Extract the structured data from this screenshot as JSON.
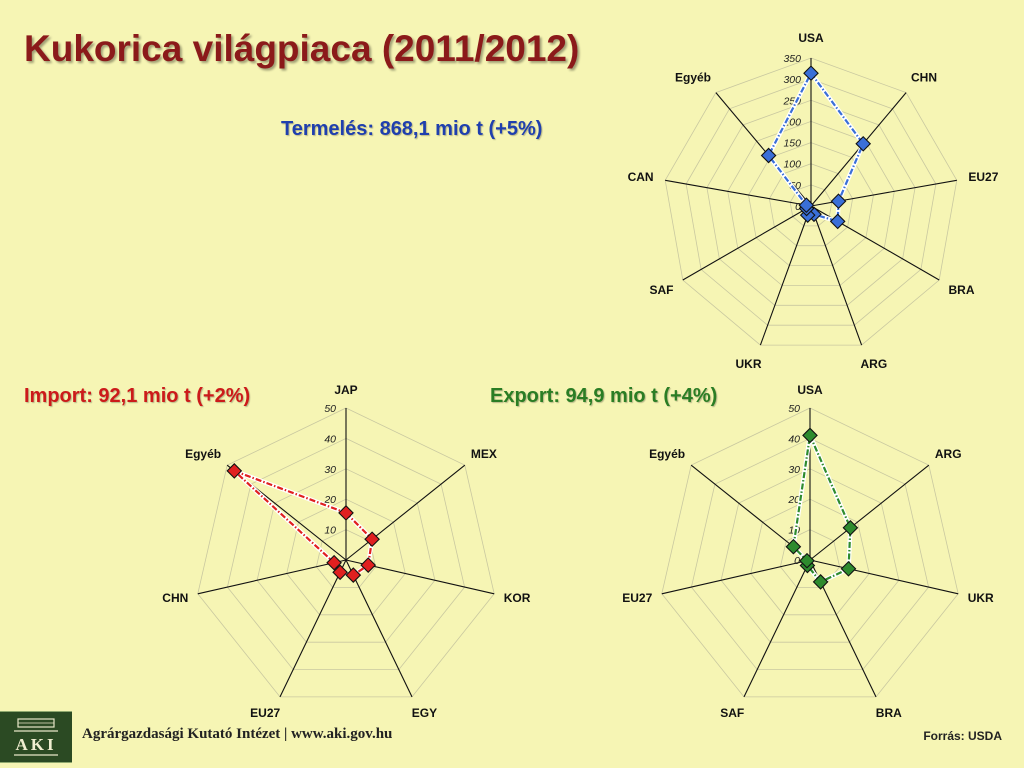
{
  "page": {
    "title": "Kukorica világpiaca (2011/2012)",
    "footer_org": "Agrárgazdasági Kutató Intézet | www.aki.gov.hu",
    "footer_source": "Forrás: USDA",
    "logo_text": "AKI"
  },
  "colors": {
    "background": "#f6f5b4",
    "title": "#8b1a1a",
    "production": "#3a6fd8",
    "import": "#e02020",
    "export": "#2e8b2e"
  },
  "chart_data": [
    {
      "id": "production",
      "type": "radar",
      "subtitle": "Termelés: 868,1 mio t (+5%)",
      "categories": [
        "USA",
        "CHN",
        "EU27",
        "BRA",
        "ARG",
        "UKR",
        "SAF",
        "CAN",
        "Egyéb"
      ],
      "values": [
        314,
        192,
        66,
        73,
        21,
        23,
        12,
        11,
        156
      ],
      "rmax": 350,
      "ticks": [
        0,
        50,
        100,
        150,
        200,
        250,
        300,
        350
      ],
      "color": "#3a6fd8",
      "grid": true
    },
    {
      "id": "import",
      "type": "radar",
      "subtitle": "Import: 92,1 mio t (+2%)",
      "categories": [
        "JAP",
        "MEX",
        "KOR",
        "EGY",
        "EU27",
        "CHN",
        "Egyéb"
      ],
      "values": [
        15.5,
        11,
        7.5,
        5.5,
        4.5,
        4,
        47
      ],
      "rmax": 50,
      "ticks": [
        0,
        10,
        20,
        30,
        40,
        50
      ],
      "color": "#e02020",
      "grid": true
    },
    {
      "id": "export",
      "type": "radar",
      "subtitle": "Export: 94,9 mio t (+4%)",
      "categories": [
        "USA",
        "ARG",
        "UKR",
        "BRA",
        "SAF",
        "EU27",
        "Egyéb"
      ],
      "values": [
        41,
        17,
        13,
        8,
        2,
        1,
        7
      ],
      "rmax": 50,
      "ticks": [
        0,
        10,
        20,
        30,
        40,
        50
      ],
      "color": "#2e8b2e",
      "grid": true
    }
  ]
}
